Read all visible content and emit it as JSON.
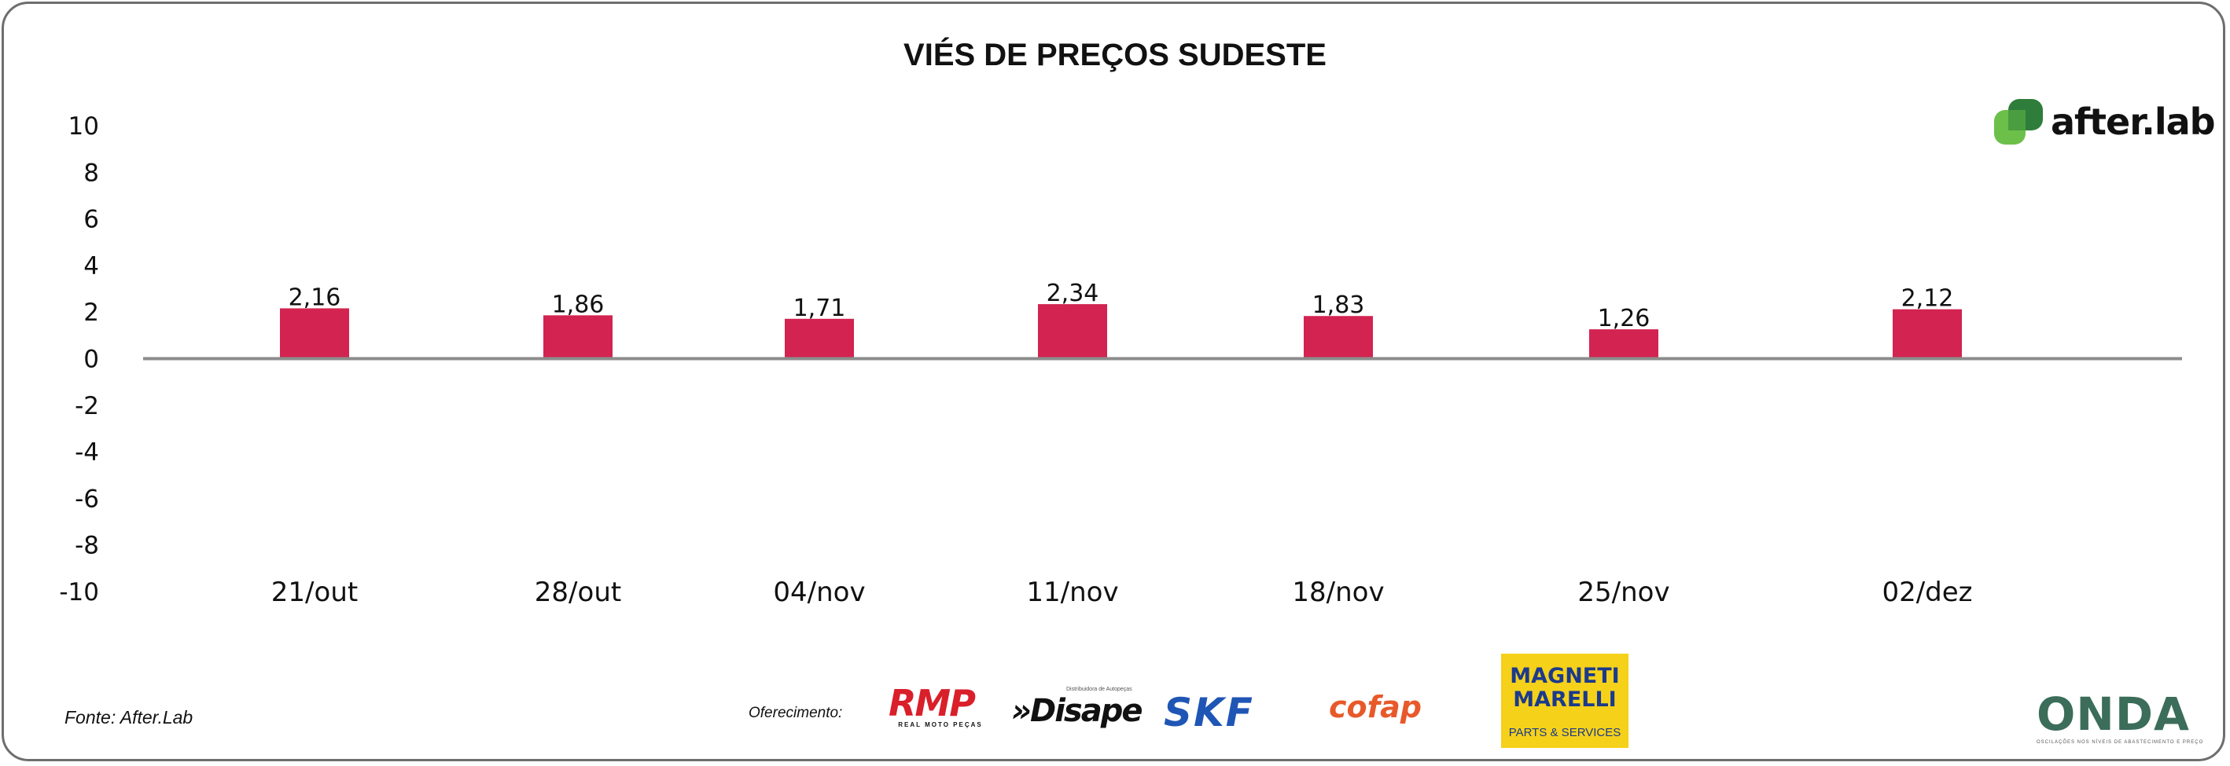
{
  "chart_data": {
    "type": "bar",
    "title": "VIÉS DE PREÇOS SUDESTE",
    "categories": [
      "21/out",
      "28/out",
      "04/nov",
      "11/nov",
      "18/nov",
      "25/nov",
      "02/dez"
    ],
    "values": [
      2.16,
      1.86,
      1.71,
      2.34,
      1.83,
      1.26,
      2.12
    ],
    "value_labels": [
      "2,16",
      "1,86",
      "1,71",
      "2,34",
      "1,83",
      "1,26",
      "2,12"
    ],
    "ylim": [
      -10,
      10
    ],
    "yticks": [
      "10",
      "8",
      "6",
      "4",
      "2",
      "0",
      "-2",
      "-4",
      "-6",
      "-8",
      "-10"
    ],
    "xlabel": "",
    "ylabel": "",
    "grid": false,
    "bar_color": "#d32350",
    "axis_color": "#8c8c8c"
  },
  "source": "Fonte: After.Lab",
  "sponsor_label": "Oferecimento:",
  "logos": {
    "afterlab": "after.lab",
    "rmp": "RMP",
    "rmp_sub": "REAL MOTO PEÇAS",
    "disape": "»Disape",
    "disape_sub": "Distribuidora de Autopeças",
    "skf": "SKF",
    "cofap": "cofap",
    "magneti_1": "MAGNETI",
    "magneti_2": "MARELLI",
    "magneti_3": "PARTS & SERVICES",
    "onda": "ONDA",
    "onda_sub": "OSCILAÇÕES NOS NÍVEIS DE ABASTECIMENTO E PREÇO"
  },
  "colors": {
    "afterlab_green": "#6cc04a",
    "frame": "#6e6e6e"
  }
}
